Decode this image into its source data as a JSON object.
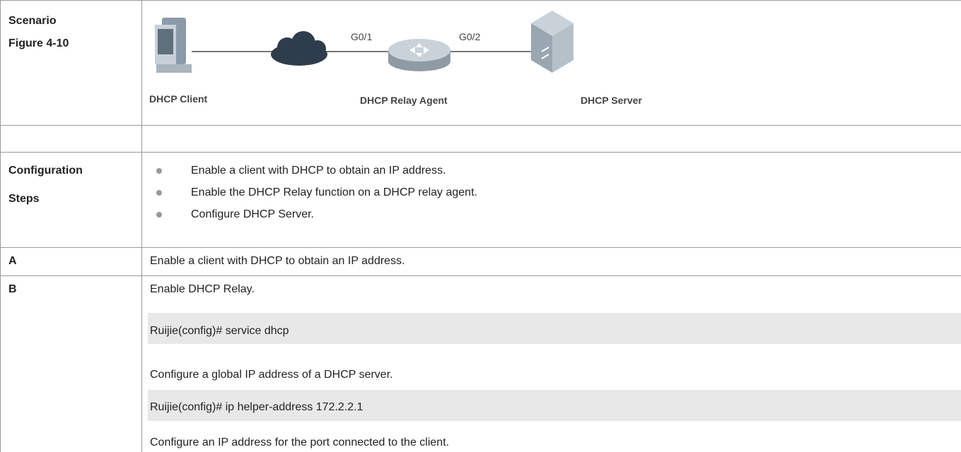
{
  "scenario": {
    "label": "Scenario",
    "figure": "Figure 4-10",
    "diagram": {
      "port_left": "G0/1",
      "port_right": "G0/2",
      "client": "DHCP Client",
      "relay": "DHCP Relay Agent",
      "server": "DHCP Server"
    }
  },
  "steps": {
    "label": [
      "Configuration",
      "Steps"
    ],
    "items": [
      "Enable a client with DHCP to obtain an IP address.",
      "Enable the DHCP Relay function on a DHCP relay agent.",
      "Configure DHCP Server."
    ]
  },
  "step_a": {
    "label": "A",
    "text": "Enable a client with DHCP to obtain an IP address."
  },
  "step_b": {
    "label": "B",
    "content": [
      "Enable DHCP Relay.",
      "Ruijie(config)# service dhcp",
      "Configure a global IP address of a DHCP server.",
      "Ruijie(config)# ip helper-address 172.2.2.1",
      "Configure an IP address for the port connected to the client."
    ]
  }
}
